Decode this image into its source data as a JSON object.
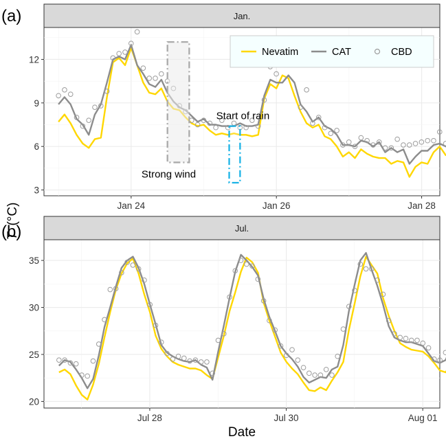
{
  "chart_data": [
    {
      "panel_label": "(a)",
      "strip": "Jan.",
      "type": "line",
      "x_ticks": [
        "Jan 24",
        "Jan 26",
        "Jan 28"
      ],
      "y_ticks": [
        3,
        6,
        9,
        12
      ],
      "ylim": [
        2.6,
        14.2
      ],
      "legend": {
        "position": "top-right",
        "entries": [
          {
            "name": "Nevatim",
            "style": "line",
            "color": "#ffd700"
          },
          {
            "name": "CAT",
            "style": "line",
            "color": "#8c8c8c"
          },
          {
            "name": "CBD",
            "style": "points",
            "color": "#9c9c9c"
          }
        ]
      },
      "annotations": [
        {
          "text": "Strong wind",
          "box_color": "#aaaaaa",
          "x_from": 24.5,
          "x_to": 24.8,
          "y_from": 4.9,
          "y_to": 13.2
        },
        {
          "text": "Start of rain",
          "box_color": "#1ab3e6",
          "x_from": 25.35,
          "x_to": 25.5,
          "y_from": 3.5,
          "y_to": 7.4
        }
      ],
      "x_start": 23.0,
      "x_step": 0.0833,
      "series": [
        {
          "name": "Nevatim",
          "color": "#ffd700",
          "values": [
            7.7,
            8.2,
            7.6,
            6.8,
            6.2,
            5.9,
            6.5,
            6.6,
            9.4,
            11.8,
            12.1,
            11.6,
            12.8,
            11.6,
            10.4,
            9.7,
            9.6,
            10.0,
            9.1,
            8.6,
            8.5,
            8.0,
            7.6,
            7.4,
            7.5,
            7.1,
            6.8,
            6.9,
            6.8,
            6.9,
            6.8,
            6.8,
            6.7,
            6.8,
            9.3,
            10.3,
            10.0,
            10.9,
            10.7,
            9.5,
            8.4,
            7.6,
            7.3,
            7.5,
            6.7,
            6.5,
            6.0,
            5.3,
            5.6,
            5.2,
            5.8,
            5.5,
            5.3,
            5.2,
            5.2,
            4.8,
            5.0,
            4.9,
            3.9,
            4.6,
            4.9,
            4.8,
            5.6,
            6.0,
            5.4,
            5.6,
            5.3,
            4.9,
            4.7,
            5.3,
            5.2,
            4.6,
            4.5,
            4.5,
            4.8,
            4.3,
            4.7,
            4.2,
            4.3,
            4.2,
            4.1,
            4.5,
            4.4,
            4.2,
            4.5,
            5.0,
            4.9,
            4.8,
            5.4,
            6.0,
            7.3,
            6.0,
            6.6,
            6.6,
            6.1,
            5.4,
            4.8,
            4.6,
            4.2,
            3.7,
            4.2,
            4.3,
            4.4,
            4.1,
            4.0,
            3.6,
            4.0,
            3.8,
            3.3,
            4.2,
            3.9,
            4.4,
            5.7,
            7.7,
            8.0,
            8.8,
            8.9,
            8.5,
            7.9,
            6.6,
            5.7,
            5.0,
            4.3,
            3.8
          ]
        },
        {
          "name": "CAT",
          "color": "#8c8c8c",
          "values": [
            8.9,
            9.4,
            8.9,
            7.9,
            7.5,
            6.8,
            8.2,
            8.9,
            10.4,
            12.0,
            12.2,
            12.0,
            13.0,
            11.6,
            11.0,
            10.3,
            10.1,
            10.6,
            9.7,
            9.1,
            8.7,
            8.5,
            8.1,
            7.7,
            7.9,
            7.5,
            7.5,
            7.4,
            7.4,
            7.4,
            7.6,
            7.4,
            7.4,
            7.5,
            9.5,
            10.6,
            10.4,
            10.4,
            10.9,
            10.4,
            8.9,
            8.4,
            7.7,
            8.0,
            7.4,
            7.2,
            6.8,
            6.1,
            6.1,
            6.0,
            6.4,
            6.3,
            6.0,
            6.3,
            5.6,
            5.9,
            5.6,
            5.8,
            4.8,
            5.3,
            5.7,
            5.7,
            6.1,
            6.2,
            6.0,
            6.2,
            5.9,
            5.4,
            5.6,
            5.9,
            5.9,
            5.3,
            5.3,
            5.3,
            5.5,
            5.2,
            5.4,
            5.0,
            5.0,
            5.0,
            4.9,
            5.0,
            5.0,
            4.9,
            5.1,
            5.5,
            5.5,
            5.5,
            6.2,
            6.4,
            7.7,
            6.6,
            6.9,
            6.9,
            6.7,
            6.1,
            5.8,
            5.5,
            5.1,
            4.6,
            5.1,
            5.2,
            5.3,
            5.0,
            4.9,
            4.6,
            4.9,
            4.8,
            4.4,
            5.4,
            5.1,
            5.7,
            6.6,
            8.2,
            8.6,
            9.0,
            9.0,
            8.7,
            8.1,
            7.5,
            6.8,
            6.4,
            6.3,
            5.6
          ]
        },
        {
          "name": "CBD",
          "color": "#9c9c9c",
          "values": [
            9.5,
            9.9,
            9.6,
            8.0,
            7.4,
            7.8,
            8.7,
            8.8,
            9.8,
            12.1,
            12.4,
            12.5,
            13.1,
            13.9,
            11.4,
            10.7,
            10.7,
            11.0,
            10.5,
            10.0,
            8.8,
            8.4,
            7.8,
            7.5,
            7.8,
            7.6,
            7.3,
            7.8,
            7.3,
            7.6,
            7.3,
            7.3,
            7.8,
            7.4,
            9.2,
            11.5,
            11.0,
            11.7,
            11.7,
            12.1,
            8.7,
            9.9,
            7.6,
            8.0,
            7.3,
            6.9,
            7.1,
            6.1,
            6.3,
            6.0,
            6.6,
            6.4,
            6.1,
            6.3,
            5.9,
            5.9,
            6.5,
            6.1,
            6.1,
            6.2,
            6.3,
            6.4,
            6.4,
            7.0,
            6.2,
            6.6,
            6.4,
            5.9,
            5.8,
            6.0,
            5.7,
            5.5,
            5.3,
            5.6,
            5.4,
            5.1,
            5.6,
            5.3,
            5.2,
            5.1,
            5.0,
            5.0,
            5.2,
            5.1,
            5.3,
            5.5,
            6.2,
            6.4,
            6.7,
            6.7,
            8.1,
            6.8,
            6.7,
            7.1,
            6.6,
            6.1,
            5.5,
            5.6,
            5.6,
            4.9,
            5.5,
            5.8,
            5.7,
            5.3,
            5.1,
            4.8,
            5.1,
            5.2,
            4.7,
            5.2,
            5.2,
            6.2,
            6.9,
            8.0,
            9.3,
            9.0,
            9.1,
            10.1,
            9.8,
            8.1,
            7.3,
            6.2,
            5.2,
            4.6
          ]
        }
      ]
    },
    {
      "panel_label": "(b)",
      "strip": "Jul.",
      "type": "line",
      "x_ticks": [
        "Jul 28",
        "Jul 30",
        "Aug 01"
      ],
      "y_ticks": [
        20,
        25,
        30,
        35
      ],
      "ylim": [
        19.3,
        37.2
      ],
      "x_start": 26.67,
      "x_step": 0.0833,
      "series": [
        {
          "name": "Nevatim",
          "color": "#ffd700",
          "values": [
            23.1,
            23.4,
            22.9,
            21.7,
            20.7,
            20.2,
            21.8,
            24.0,
            26.8,
            29.5,
            31.9,
            33.6,
            34.7,
            35.2,
            33.6,
            31.4,
            29.5,
            27.0,
            25.6,
            24.8,
            24.2,
            23.9,
            23.7,
            23.5,
            23.5,
            23.3,
            22.8,
            22.4,
            24.7,
            27.0,
            29.6,
            31.6,
            33.8,
            35.3,
            34.8,
            33.7,
            30.5,
            28.6,
            26.9,
            25.2,
            24.2,
            23.5,
            22.9,
            22.0,
            21.2,
            21.1,
            21.5,
            21.2,
            22.2,
            23.1,
            24.2,
            27.6,
            30.4,
            33.3,
            35.4,
            34.5,
            33.6,
            31.0,
            29.1,
            27.5,
            26.2,
            25.8,
            25.5,
            25.4,
            25.3,
            24.8,
            24.1,
            23.3,
            23.1,
            24.0,
            25.6,
            28.8,
            31.0,
            33.4,
            34.8,
            34.4,
            33.6,
            30.3,
            28.4,
            26.6,
            25.6,
            25.0,
            24.8,
            24.2,
            23.7,
            23.0,
            22.4,
            22.0,
            22.3,
            22.8,
            24.6,
            27.3,
            30.7,
            33.0,
            35.4,
            36.1,
            34.4,
            32.3,
            29.6,
            27.7,
            26.1,
            25.2,
            24.7
          ]
        },
        {
          "name": "CAT",
          "color": "#8c8c8c",
          "values": [
            23.8,
            24.4,
            24.2,
            23.4,
            22.5,
            21.4,
            22.4,
            24.9,
            27.9,
            30.0,
            32.2,
            34.2,
            35.0,
            35.4,
            34.2,
            32.5,
            30.3,
            28.2,
            26.0,
            25.2,
            24.8,
            24.5,
            24.3,
            24.2,
            24.4,
            23.9,
            23.6,
            22.3,
            25.3,
            28.1,
            31.0,
            33.8,
            35.6,
            35.0,
            34.3,
            33.4,
            30.9,
            29.0,
            27.5,
            25.9,
            25.1,
            24.5,
            23.7,
            22.6,
            22.0,
            22.3,
            22.6,
            22.5,
            23.4,
            23.7,
            26.0,
            29.6,
            32.4,
            35.0,
            35.8,
            34.0,
            32.3,
            30.3,
            28.0,
            26.8,
            26.5,
            26.3,
            26.3,
            26.1,
            25.9,
            25.1,
            24.3,
            24.1,
            24.4,
            25.8,
            28.0,
            30.4,
            32.3,
            35.0,
            34.7,
            33.7,
            32.3,
            29.6,
            27.9,
            26.1,
            25.5,
            25.3,
            25.0,
            24.6,
            24.0,
            23.2,
            23.2,
            23.6,
            25.0,
            26.8,
            29.2,
            31.6,
            34.0,
            35.7,
            36.3,
            34.7,
            32.6,
            30.4,
            28.3,
            27.0,
            25.8,
            25.4
          ]
        },
        {
          "name": "CBD",
          "color": "#9c9c9c",
          "values": [
            24.4,
            24.4,
            24.1,
            24.0,
            22.8,
            22.7,
            24.3,
            26.1,
            28.7,
            31.9,
            32.0,
            33.7,
            34.8,
            34.5,
            34.1,
            32.9,
            30.3,
            28.1,
            26.3,
            25.1,
            24.5,
            24.8,
            24.6,
            24.3,
            24.4,
            24.2,
            24.2,
            23.0,
            26.5,
            27.2,
            31.1,
            33.9,
            35.0,
            34.6,
            34.4,
            33.0,
            30.7,
            28.6,
            27.6,
            25.9,
            24.9,
            25.5,
            24.4,
            23.6,
            23.0,
            22.8,
            22.8,
            23.4,
            22.8,
            24.8,
            27.7,
            30.1,
            31.8,
            34.6,
            34.1,
            34.1,
            32.9,
            31.4,
            28.6,
            27.2,
            26.8,
            26.7,
            26.5,
            26.5,
            26.2,
            25.7,
            24.5,
            24.4,
            25.2,
            27.1,
            28.3,
            30.6,
            32.7,
            34.1,
            34.9,
            34.1,
            32.7,
            29.4,
            28.2,
            26.4,
            25.8,
            25.4,
            25.4,
            24.9,
            24.3,
            23.7,
            24.0,
            23.9,
            26.0,
            27.9,
            30.1,
            31.0,
            33.6,
            35.3,
            36.6,
            35.4,
            32.5,
            30.8,
            28.1,
            27.8,
            26.5,
            25.4
          ]
        }
      ]
    }
  ],
  "axes": {
    "x_title": "Date",
    "y_title_symbol": "T",
    "y_title_unit": "(°C)"
  }
}
